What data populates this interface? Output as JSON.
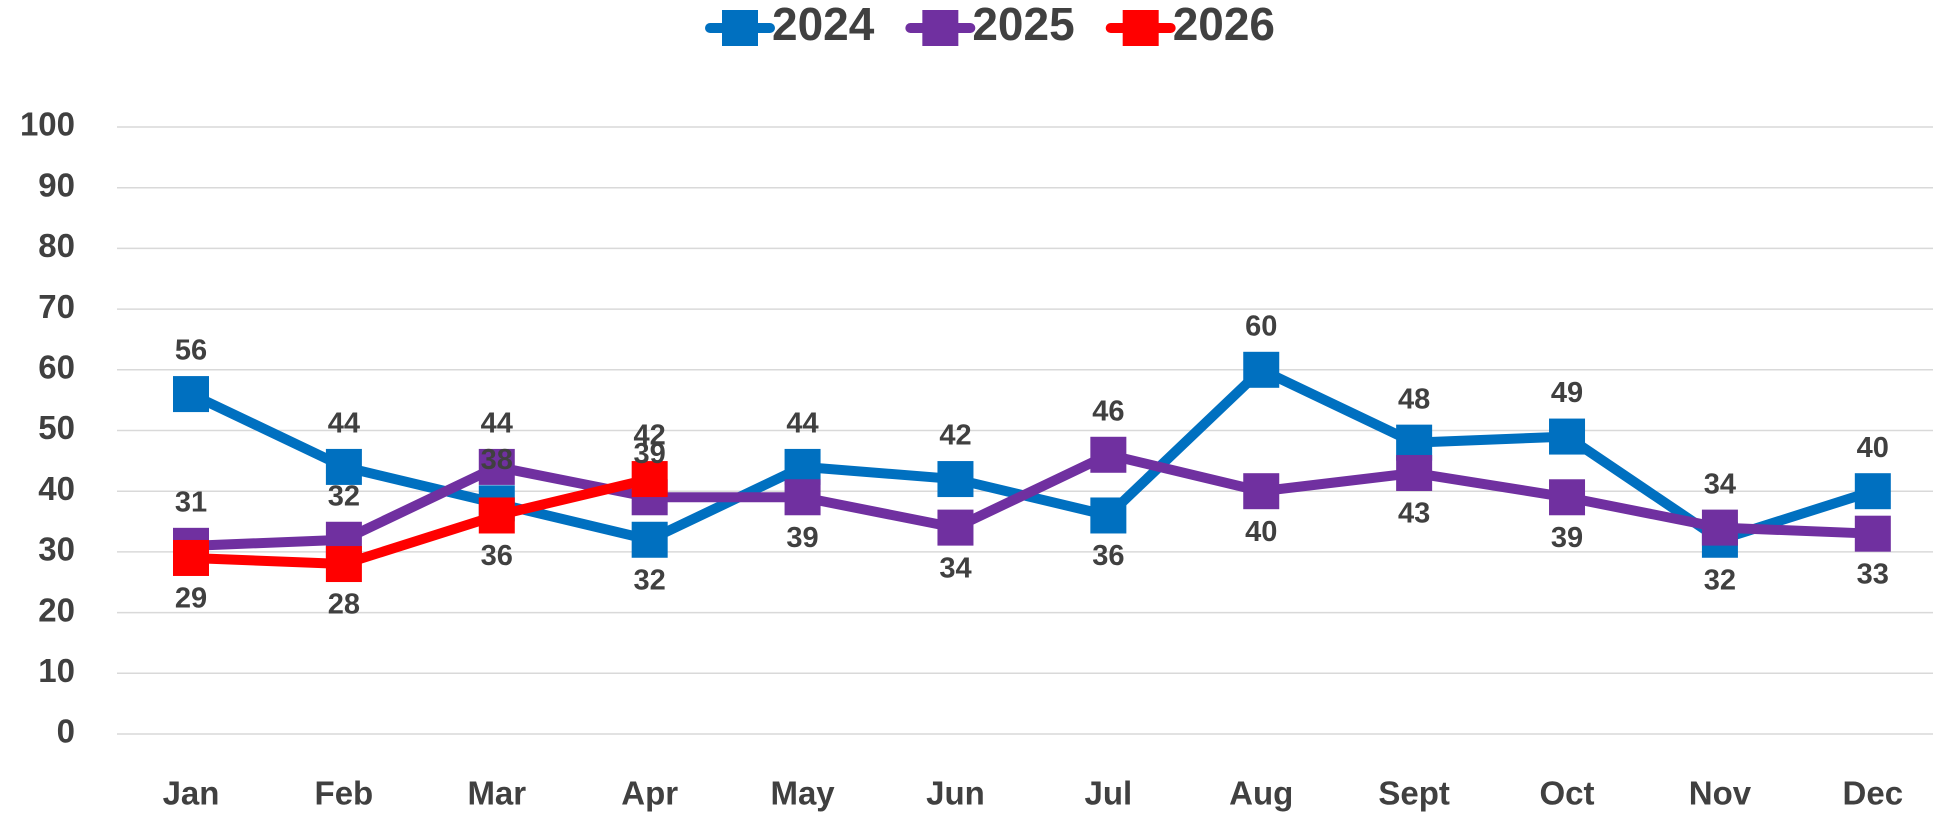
{
  "chart_data": {
    "type": "line",
    "categories": [
      "Jan",
      "Feb",
      "Mar",
      "Apr",
      "May",
      "Jun",
      "Jul",
      "Aug",
      "Sept",
      "Oct",
      "Nov",
      "Dec"
    ],
    "series": [
      {
        "name": "2024",
        "color": "#0070C0",
        "values": [
          56,
          44,
          38,
          32,
          44,
          42,
          36,
          60,
          48,
          49,
          32,
          40
        ]
      },
      {
        "name": "2025",
        "color": "#7030A0",
        "values": [
          31,
          32,
          44,
          39,
          39,
          34,
          46,
          40,
          43,
          39,
          34,
          33
        ]
      },
      {
        "name": "2026",
        "color": "#FF0000",
        "values": [
          29,
          28,
          36,
          42,
          null,
          null,
          null,
          null,
          null,
          null,
          null,
          null
        ]
      }
    ],
    "ylim": [
      0,
      100
    ],
    "yticks": [
      0,
      10,
      20,
      30,
      40,
      50,
      60,
      70,
      80,
      90,
      100
    ],
    "grid": true,
    "legend": "top"
  }
}
